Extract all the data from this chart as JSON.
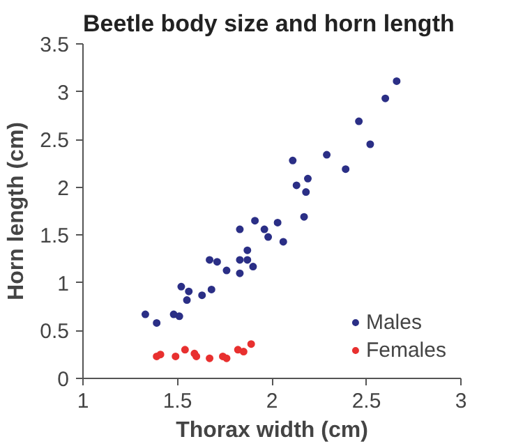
{
  "chart_data": {
    "type": "scatter",
    "title": "Beetle body size and horn length",
    "xlabel": "Thorax width (cm)",
    "ylabel": "Horn length (cm)",
    "xlim": [
      1,
      3
    ],
    "xticks": [
      1,
      1.5,
      2,
      2.5,
      3
    ],
    "ylim": [
      0,
      3.5
    ],
    "yticks": [
      0,
      0.5,
      1,
      1.5,
      2,
      2.5,
      3,
      3.5
    ],
    "grid": false,
    "legend": "bottom right",
    "marker": "circle",
    "series": [
      {
        "name": "Males",
        "color": "#2b2f86",
        "x": [
          1.33,
          1.39,
          1.48,
          1.51,
          1.52,
          1.56,
          1.55,
          1.63,
          1.68,
          1.67,
          1.71,
          1.76,
          1.83,
          1.83,
          1.87,
          1.87,
          1.9,
          1.83,
          1.91,
          1.96,
          1.98,
          2.03,
          2.06,
          2.11,
          2.13,
          2.18,
          2.19,
          2.17,
          2.29,
          2.39,
          2.46,
          2.52,
          2.6,
          2.66
        ],
        "values": [
          0.67,
          0.58,
          0.67,
          0.65,
          0.96,
          0.91,
          0.82,
          0.87,
          0.93,
          1.24,
          1.22,
          1.13,
          1.1,
          1.24,
          1.24,
          1.34,
          1.17,
          1.56,
          1.65,
          1.56,
          1.48,
          1.63,
          1.43,
          2.28,
          2.02,
          1.95,
          2.09,
          1.69,
          2.34,
          2.19,
          2.69,
          2.45,
          2.93,
          3.11
        ]
      },
      {
        "name": "Females",
        "color": "#e8302f",
        "x": [
          1.39,
          1.41,
          1.49,
          1.54,
          1.59,
          1.6,
          1.67,
          1.74,
          1.76,
          1.82,
          1.85,
          1.89
        ],
        "values": [
          0.23,
          0.25,
          0.23,
          0.3,
          0.26,
          0.23,
          0.21,
          0.23,
          0.21,
          0.3,
          0.28,
          0.36
        ]
      }
    ]
  }
}
